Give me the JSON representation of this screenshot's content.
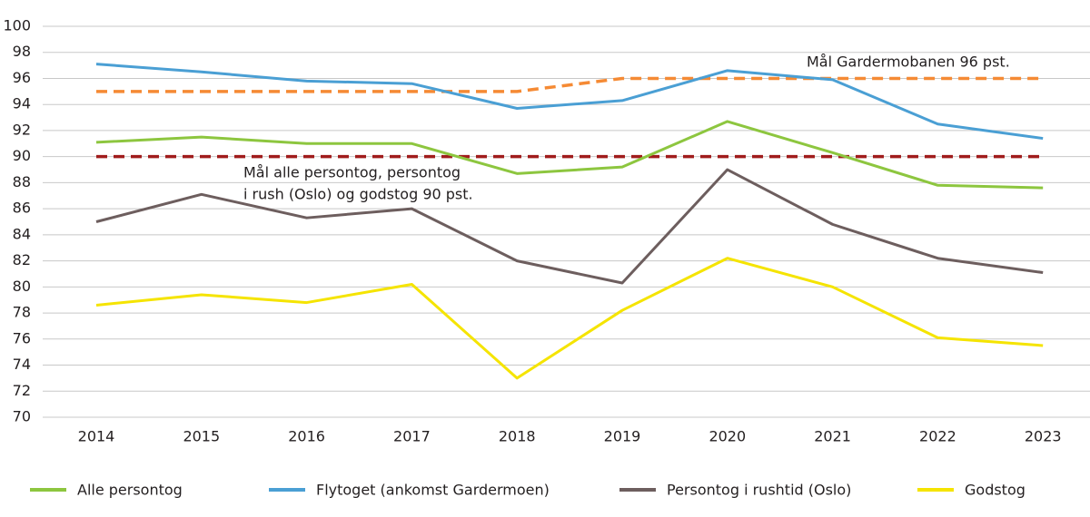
{
  "chart_data": {
    "type": "line",
    "categories": [
      "2014",
      "2015",
      "2016",
      "2017",
      "2018",
      "2019",
      "2020",
      "2021",
      "2022",
      "2023"
    ],
    "ylim": [
      70,
      100
    ],
    "yticks": [
      70,
      72,
      74,
      76,
      78,
      80,
      82,
      84,
      86,
      88,
      90,
      92,
      94,
      96,
      98,
      100
    ],
    "grid": true,
    "legend": "bottom",
    "series": [
      {
        "name": "Alle persontog",
        "color": "#8dc63f",
        "values": [
          91.1,
          91.5,
          91.0,
          91.0,
          88.7,
          89.2,
          92.7,
          90.3,
          87.8,
          87.6
        ]
      },
      {
        "name": "Flytoget (ankomst Gardermoen)",
        "color": "#4a9fd4",
        "values": [
          97.1,
          96.5,
          95.8,
          95.6,
          93.7,
          94.3,
          96.6,
          95.9,
          92.5,
          91.4
        ]
      },
      {
        "name": "Persontog i rushtid (Oslo)",
        "color": "#6d5e5e",
        "values": [
          85.0,
          87.1,
          85.3,
          86.0,
          82.0,
          80.3,
          89.0,
          84.8,
          82.2,
          81.1
        ]
      },
      {
        "name": "Godstog",
        "color": "#f5e400",
        "values": [
          78.6,
          79.4,
          78.8,
          80.2,
          73.0,
          78.2,
          82.2,
          80.0,
          76.1,
          75.5
        ]
      }
    ],
    "targets": [
      {
        "color": "#f58a34",
        "values": [
          95,
          95,
          95,
          95,
          95,
          96,
          96,
          96,
          96,
          96
        ]
      },
      {
        "color": "#a01c1c",
        "values": [
          90,
          90,
          90,
          90,
          90,
          90,
          90,
          90,
          90,
          90
        ]
      }
    ],
    "annotations": [
      "Mål Gardermobanen 96 pst.",
      "Mål alle persontog, persontog",
      "i rush (Oslo) og godstog 90 pst."
    ]
  }
}
